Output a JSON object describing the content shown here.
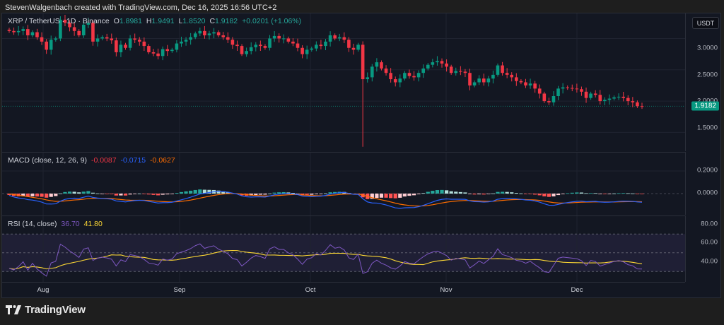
{
  "header": {
    "credit": "StevenWalgenbach created with TradingView.com, Dec 16, 2025 16:56 UTC+2"
  },
  "symbol": {
    "title": "XRP / TetherUS · 1D · Binance",
    "open_label": "O",
    "open": "1.8981",
    "high_label": "H",
    "high": "1.9491",
    "low_label": "L",
    "low": "1.8520",
    "close_label": "C",
    "close": "1.9182",
    "change": "+0.0201 (+1.06%)"
  },
  "currency_button": "USDT",
  "last_price_tag": "1.9182",
  "price_scale": [
    "3.0000",
    "2.5000",
    "2.0000",
    "1.5000"
  ],
  "macd": {
    "label": "MACD (close, 12, 26, 9)",
    "histogram": "-0.0087",
    "macd": "-0.0715",
    "signal": "-0.0627",
    "scale": [
      "0.2000",
      "0.0000"
    ]
  },
  "rsi": {
    "label": "RSI (14, close)",
    "rsi": "36.70",
    "ma": "41.80",
    "scale": [
      "80.00",
      "60.00",
      "40.00"
    ]
  },
  "time_axis": [
    "Aug",
    "Sep",
    "Oct",
    "Nov",
    "Dec"
  ],
  "brand": "TradingView",
  "colors": {
    "up": "#089981",
    "down": "#f23645",
    "macd_line": "#2962ff",
    "signal_line": "#ff6d00",
    "rsi_line": "#7e57c2",
    "rsi_ma": "#fdd835",
    "background": "#131722"
  },
  "chart_data": [
    {
      "type": "candlestick",
      "title": "XRP / TetherUS · 1D · Binance",
      "x_range": [
        "Jul 2025",
        "Dec 16 2025"
      ],
      "x_ticks": [
        "Aug",
        "Sep",
        "Oct",
        "Nov",
        "Dec"
      ],
      "ylim": [
        1.2,
        3.4
      ],
      "y_ticks": [
        3.0,
        2.5,
        2.0,
        1.5
      ],
      "last": {
        "open": 1.8981,
        "high": 1.9491,
        "low": 1.852,
        "close": 1.9182
      },
      "closes_approx": [
        3.12,
        3.1,
        3.12,
        3.15,
        3.05,
        3.1,
        3.02,
        2.95,
        2.82,
        2.98,
        3.0,
        3.3,
        3.25,
        3.18,
        3.12,
        3.05,
        3.22,
        3.25,
        2.95,
        3.0,
        3.02,
        3.0,
        2.97,
        2.78,
        2.9,
        2.85,
        3.0,
        2.98,
        2.95,
        2.88,
        2.78,
        2.76,
        2.72,
        2.83,
        2.8,
        2.82,
        2.92,
        2.95,
        2.98,
        3.02,
        3.08,
        3.12,
        3.05,
        3.08,
        3.1,
        3.05,
        3.02,
        2.98,
        2.9,
        2.88,
        2.75,
        2.8,
        2.86,
        2.9,
        2.88,
        2.85,
        3.0,
        3.04,
        3.0,
        3.0,
        2.95,
        2.92,
        2.85,
        2.75,
        2.82,
        2.84,
        2.9,
        2.88,
        2.95,
        3.05,
        3.0,
        3.02,
        2.98,
        2.85,
        2.82,
        2.9,
        2.35,
        2.38,
        2.55,
        2.62,
        2.52,
        2.45,
        2.35,
        2.3,
        2.36,
        2.45,
        2.4,
        2.38,
        2.45,
        2.52,
        2.58,
        2.62,
        2.64,
        2.6,
        2.55,
        2.45,
        2.48,
        2.47,
        2.45,
        2.25,
        2.3,
        2.36,
        2.3,
        2.36,
        2.42,
        2.57,
        2.45,
        2.42,
        2.38,
        2.32,
        2.3,
        2.25,
        2.28,
        2.2,
        2.12,
        2.0,
        1.98,
        2.08,
        2.2,
        2.22,
        2.21,
        2.2,
        2.19,
        2.15,
        2.05,
        2.12,
        2.1,
        2.0,
        2.02,
        2.04,
        2.06,
        2.07,
        2.05,
        2.0,
        1.98,
        1.92,
        1.9182
      ],
      "annotations": [
        "Oct 10 wick low ≈ 1.27"
      ]
    },
    {
      "type": "line+bar",
      "title": "MACD (close, 12, 26, 9)",
      "series": [
        {
          "name": "Histogram",
          "last": -0.0087
        },
        {
          "name": "MACD",
          "last": -0.0715
        },
        {
          "name": "Signal",
          "last": -0.0627
        }
      ],
      "y_ticks": [
        0.2,
        0.0
      ]
    },
    {
      "type": "line",
      "title": "RSI (14, close)",
      "series": [
        {
          "name": "RSI",
          "last": 36.7
        },
        {
          "name": "RSI-based MA",
          "last": 41.8
        }
      ],
      "y_ticks": [
        80,
        60,
        40
      ],
      "bands": [
        70,
        50,
        30
      ]
    }
  ]
}
